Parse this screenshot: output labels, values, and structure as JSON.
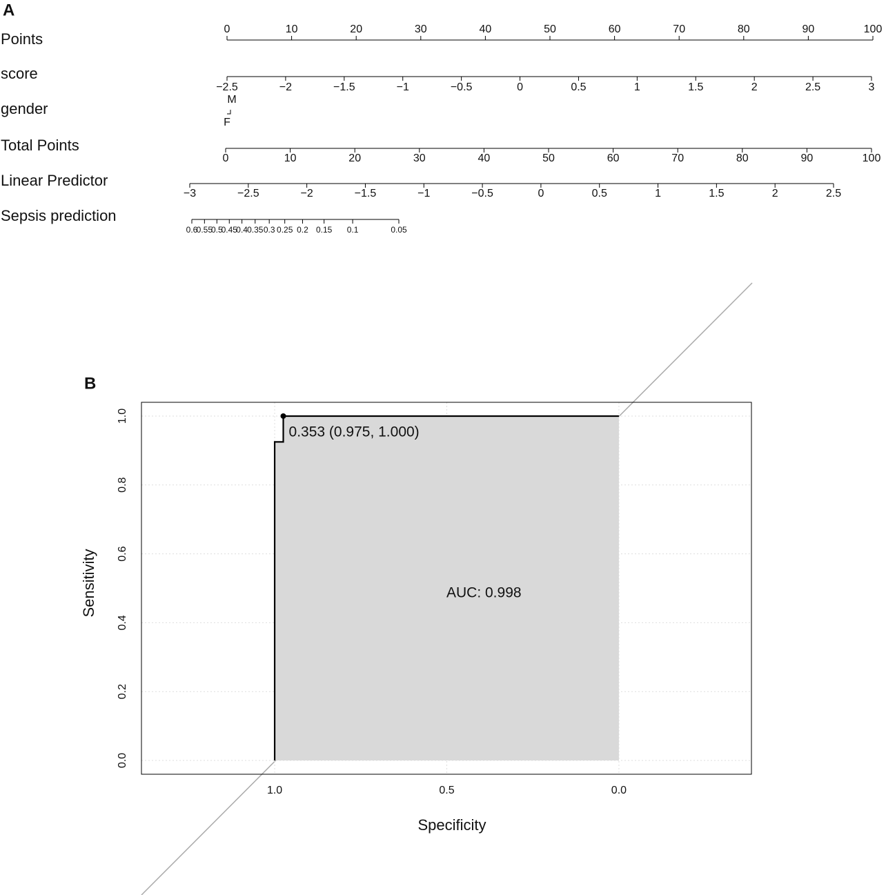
{
  "chart_data": [
    {
      "type": "nomogram",
      "panel": "A",
      "rows": [
        {
          "label": "Points",
          "xlim": [
            0,
            100
          ],
          "ticks": [
            0,
            10,
            20,
            30,
            40,
            50,
            60,
            70,
            80,
            90,
            100
          ]
        },
        {
          "label": "score",
          "xlim": [
            -2.5,
            3
          ],
          "ticks": [
            {
              "value": -2.5,
              "label": "−2.5"
            },
            {
              "value": -2,
              "label": "−2"
            },
            {
              "value": -1.5,
              "label": "−1.5"
            },
            {
              "value": -1,
              "label": "−1"
            },
            {
              "value": -0.5,
              "label": "−0.5"
            },
            0,
            0.5,
            1,
            1.5,
            2,
            2.5,
            3
          ]
        },
        {
          "label": "gender",
          "levels": [
            "M",
            "F"
          ]
        },
        {
          "label": "Total Points",
          "xlim": [
            0,
            100
          ],
          "ticks": [
            0,
            10,
            20,
            30,
            40,
            50,
            60,
            70,
            80,
            90,
            100
          ]
        },
        {
          "label": "Linear Predictor",
          "xlim": [
            -3,
            2.5
          ],
          "ticks": [
            {
              "value": -3,
              "label": "−3"
            },
            {
              "value": -2.5,
              "label": "−2.5"
            },
            {
              "value": -2,
              "label": "−2"
            },
            {
              "value": -1.5,
              "label": "−1.5"
            },
            {
              "value": -1,
              "label": "−1"
            },
            {
              "value": -0.5,
              "label": "−0.5"
            },
            0,
            0.5,
            1,
            1.5,
            2,
            2.5
          ]
        },
        {
          "label": "Sepsis prediction",
          "xlim": [
            0.6,
            0.05
          ],
          "scale": "logit",
          "ticks": [
            0.6,
            0.55,
            0.5,
            0.45,
            0.4,
            0.35,
            0.3,
            0.25,
            0.2,
            0.15,
            0.1,
            0.05
          ]
        }
      ]
    },
    {
      "type": "roc",
      "panel": "B",
      "xlabel": "Specificity",
      "ylabel": "Sensitivity",
      "xlim": [
        1.387,
        -0.385
      ],
      "ylim": [
        -0.04,
        1.04
      ],
      "xticks": [
        {
          "value": 1.0,
          "label": "1.0"
        },
        0.5,
        {
          "value": 0.0,
          "label": "0.0"
        }
      ],
      "yticks": [
        {
          "value": 0.0,
          "label": "0.0"
        },
        0.2,
        0.4,
        0.6,
        0.8,
        {
          "value": 1.0,
          "label": "1.0"
        }
      ],
      "grid": true,
      "series": [
        {
          "color": "#000000",
          "fill": "#d9d9d9",
          "x": [
            1,
            1,
            0.975,
            0.975,
            0
          ],
          "values": [
            0,
            0.925,
            0.925,
            1,
            1
          ]
        }
      ],
      "best_threshold": {
        "label": "0.353 (0.975, 1.000)",
        "specificity": 0.975,
        "sensitivity": 1.0
      },
      "auc_label": "AUC: 0.998"
    }
  ]
}
